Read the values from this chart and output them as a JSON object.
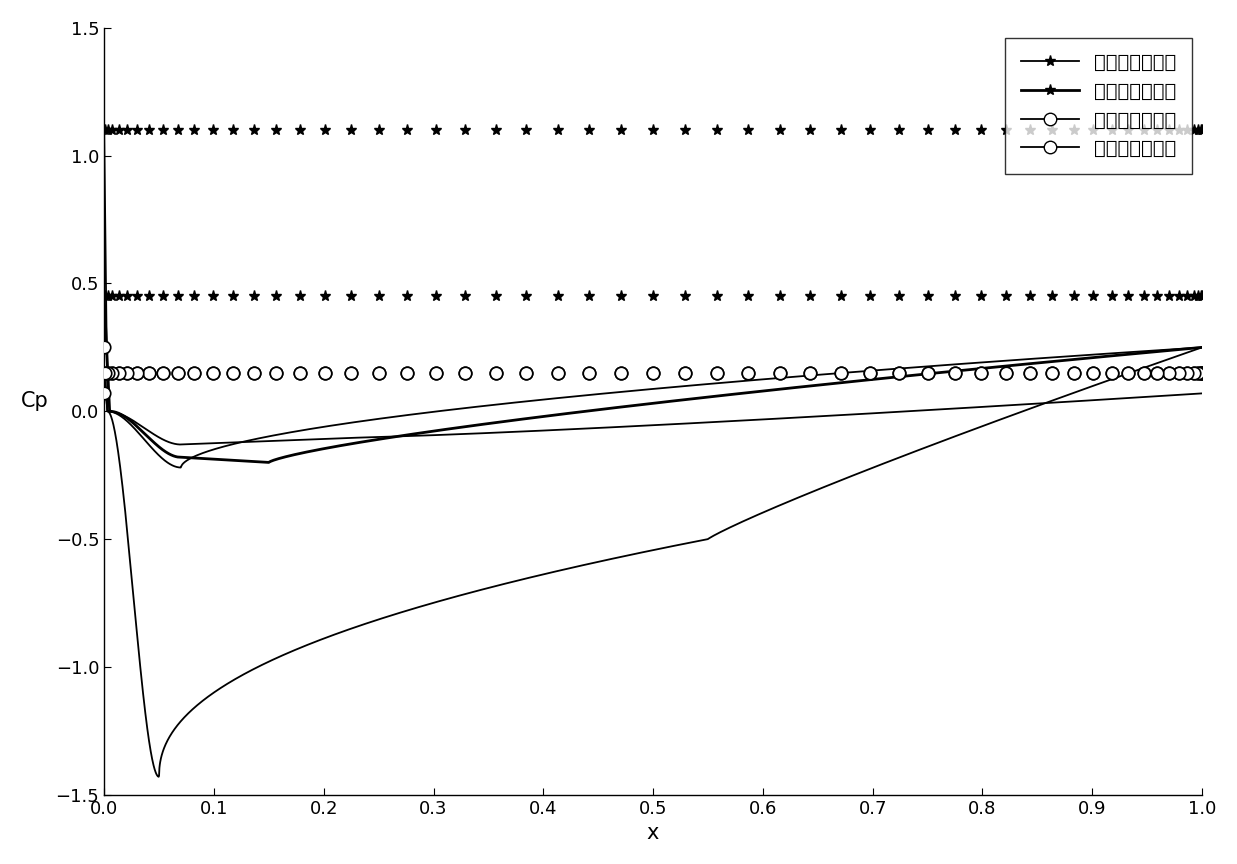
{
  "xlabel": "x",
  "ylabel": "Cp",
  "xlim": [
    0,
    1
  ],
  "ylim": [
    -1.5,
    1.5
  ],
  "xticks": [
    0,
    0.1,
    0.2,
    0.3,
    0.4,
    0.5,
    0.6,
    0.7,
    0.8,
    0.9,
    1.0
  ],
  "yticks": [
    -1.5,
    -1.0,
    -0.5,
    0,
    0.5,
    1.0,
    1.5
  ],
  "legend": [
    {
      "label": "初始翅型上表面",
      "marker": "*"
    },
    {
      "label": "初始翅型下表面",
      "marker": "*"
    },
    {
      "label": "优化翅型上表面",
      "marker": "o"
    },
    {
      "label": "优化翅型下表面",
      "marker": "o"
    }
  ],
  "line_color": "#000000",
  "background_color": "#ffffff",
  "font_size": 15,
  "legend_font_size": 14,
  "tick_font_size": 13,
  "marker_size_star": 8,
  "marker_size_circle": 9,
  "linewidth": 1.3,
  "linewidth_thick": 2.0,
  "n_markers": 55
}
